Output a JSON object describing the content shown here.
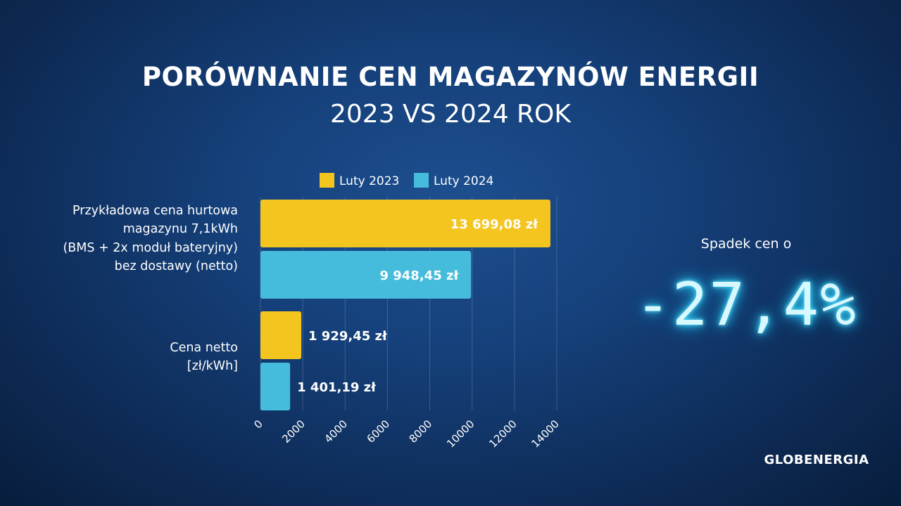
{
  "title": "PORÓWNANIE CEN MAGAZYNÓW ENERGII",
  "subtitle": "2023 VS 2024 ROK",
  "stat": {
    "caption": "Spadek cen o",
    "value": "-27,4%"
  },
  "brand": "GLOBENERGIA",
  "colors": {
    "series_2023": "#f5c51f",
    "series_2024": "#45bcdc",
    "gridline": "rgba(255,255,255,0.18)"
  },
  "chart_data": {
    "type": "bar",
    "orientation": "horizontal",
    "categories": [
      "Przykładowa cena hurtowa magazynu 7,1kWh (BMS + 2x moduł bateryjny) bez dostawy (netto)",
      "Cena netto [zł/kWh]"
    ],
    "category_lines": [
      [
        "Przykładowa cena hurtowa",
        "magazynu 7,1kWh",
        "(BMS + 2x moduł bateryjny)",
        "bez dostawy (netto)"
      ],
      [
        "Cena netto",
        "[zł/kWh]"
      ]
    ],
    "series": [
      {
        "name": "Luty 2023",
        "color": "#f5c51f",
        "values": [
          13699.08,
          1929.45
        ],
        "labels": [
          "13 699,08 zł",
          "1 929,45 zł"
        ]
      },
      {
        "name": "Luty 2024",
        "color": "#45bcdc",
        "values": [
          9948.45,
          1401.19
        ],
        "labels": [
          "9 948,45 zł",
          "1 401,19 zł"
        ]
      }
    ],
    "xlim": [
      0,
      14000
    ],
    "xticks": [
      0,
      2000,
      4000,
      6000,
      8000,
      10000,
      12000,
      14000
    ],
    "xtick_labels": [
      "0",
      "2000",
      "4000",
      "6000",
      "8000",
      "10000",
      "12000",
      "14000"
    ],
    "grid": "vertical",
    "legend": "top"
  }
}
